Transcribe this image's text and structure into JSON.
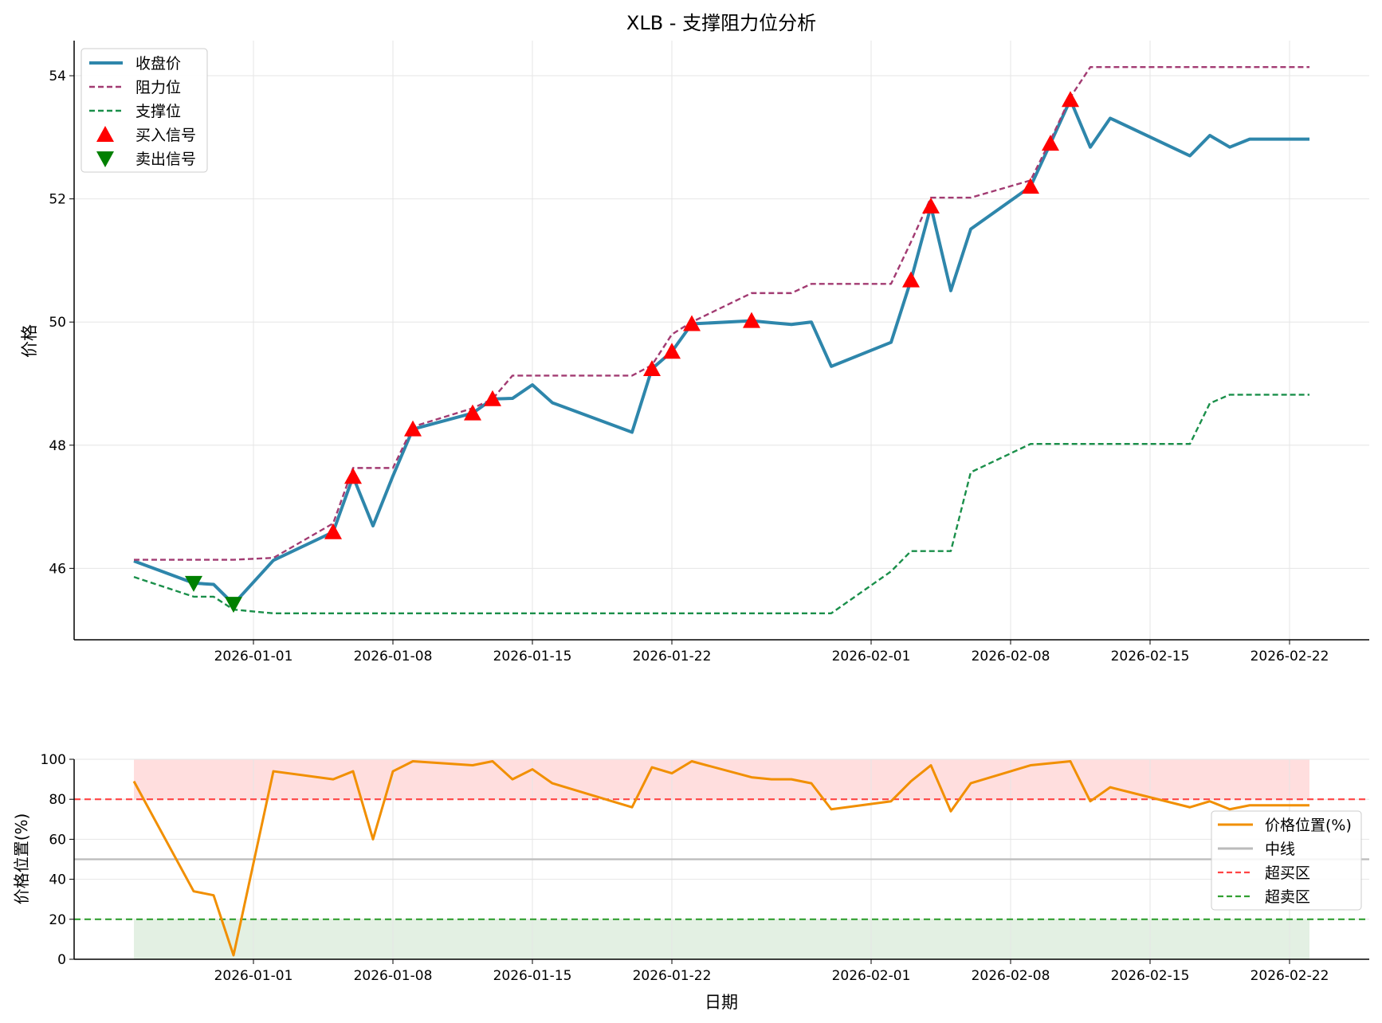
{
  "chart_data": [
    {
      "type": "line",
      "title": "XLB - 支撑阻力位分析",
      "xlabel": "",
      "ylabel": "价格",
      "ylim": [
        44.84,
        54.57
      ],
      "xlim": [
        "2025-12-23",
        "2026-02-26"
      ],
      "yticks": [
        46,
        48,
        50,
        52,
        54
      ],
      "xticks": [
        "2026-01-01",
        "2026-01-08",
        "2026-01-15",
        "2026-01-22",
        "2026-02-01",
        "2026-02-08",
        "2026-02-15",
        "2026-02-22"
      ],
      "grid": true,
      "legend_position": "top-left",
      "x": [
        "2025-12-26",
        "2025-12-29",
        "2025-12-30",
        "2025-12-31",
        "2026-01-02",
        "2026-01-05",
        "2026-01-06",
        "2026-01-07",
        "2026-01-08",
        "2026-01-09",
        "2026-01-12",
        "2026-01-13",
        "2026-01-14",
        "2026-01-15",
        "2026-01-16",
        "2026-01-20",
        "2026-01-21",
        "2026-01-22",
        "2026-01-23",
        "2026-01-26",
        "2026-01-27",
        "2026-01-28",
        "2026-01-29",
        "2026-01-30",
        "2026-02-02",
        "2026-02-03",
        "2026-02-04",
        "2026-02-05",
        "2026-02-06",
        "2026-02-09",
        "2026-02-10",
        "2026-02-11",
        "2026-02-12",
        "2026-02-13",
        "2026-02-17",
        "2026-02-18",
        "2026-02-19",
        "2026-02-20",
        "2026-02-23"
      ],
      "series": [
        {
          "name": "收盘价",
          "color": "#2e86ab",
          "style": "solid",
          "values": [
            46.12,
            45.76,
            45.74,
            45.42,
            46.13,
            46.59,
            47.49,
            46.69,
            47.5,
            48.26,
            48.52,
            48.75,
            48.76,
            48.98,
            48.69,
            48.21,
            49.24,
            49.52,
            49.97,
            50.02,
            49.99,
            49.96,
            50.0,
            49.28,
            49.67,
            50.68,
            51.88,
            50.51,
            51.51,
            52.2,
            52.9,
            53.61,
            52.84,
            53.31,
            52.7,
            53.03,
            52.84,
            52.97,
            52.97
          ]
        },
        {
          "name": "阻力位",
          "color": "#a23b72",
          "style": "dashed",
          "values": [
            46.14,
            46.14,
            46.14,
            46.14,
            46.17,
            46.73,
            47.63,
            47.63,
            47.63,
            48.3,
            48.6,
            48.75,
            49.13,
            49.13,
            49.13,
            49.13,
            49.3,
            49.8,
            50.0,
            50.47,
            50.47,
            50.47,
            50.62,
            50.62,
            50.62,
            51.3,
            52.02,
            52.02,
            52.02,
            52.3,
            52.95,
            53.65,
            54.14,
            54.14,
            54.14,
            54.14,
            54.14,
            54.14,
            54.14
          ]
        },
        {
          "name": "支撑位",
          "color": "#1a8f4a",
          "style": "dashed",
          "values": [
            45.86,
            45.54,
            45.54,
            45.33,
            45.27,
            45.27,
            45.27,
            45.27,
            45.27,
            45.27,
            45.27,
            45.27,
            45.27,
            45.27,
            45.27,
            45.27,
            45.27,
            45.27,
            45.27,
            45.27,
            45.27,
            45.27,
            45.27,
            45.27,
            45.95,
            46.28,
            46.28,
            46.28,
            47.56,
            48.02,
            48.02,
            48.02,
            48.02,
            48.02,
            48.02,
            48.68,
            48.82,
            48.82,
            48.82
          ]
        }
      ],
      "markers": [
        {
          "name": "买入信号",
          "color": "#ff0000",
          "shape": "triangle-up",
          "dates": [
            "2026-01-05",
            "2026-01-06",
            "2026-01-09",
            "2026-01-12",
            "2026-01-13",
            "2026-01-21",
            "2026-01-22",
            "2026-01-23",
            "2026-01-26",
            "2026-02-03",
            "2026-02-04",
            "2026-02-09",
            "2026-02-10",
            "2026-02-11"
          ]
        },
        {
          "name": "卖出信号",
          "color": "#008000",
          "shape": "triangle-down",
          "dates": [
            "2025-12-29",
            "2025-12-31"
          ]
        }
      ]
    },
    {
      "type": "line",
      "title": "",
      "xlabel": "日期",
      "ylabel": "价格位置(%)",
      "ylim": [
        0,
        100
      ],
      "xlim": [
        "2025-12-23",
        "2026-02-26"
      ],
      "yticks": [
        0,
        20,
        40,
        60,
        80,
        100
      ],
      "xticks": [
        "2026-01-01",
        "2026-01-08",
        "2026-01-15",
        "2026-01-22",
        "2026-02-01",
        "2026-02-08",
        "2026-02-15",
        "2026-02-22"
      ],
      "grid": true,
      "legend_position": "right",
      "series": [
        {
          "name": "价格位置(%)",
          "color": "#f18f01",
          "style": "solid",
          "values": [
            89,
            34,
            32,
            2,
            94,
            90,
            94,
            60,
            94,
            99,
            97,
            99,
            90,
            95,
            88,
            76,
            96,
            93,
            99,
            91,
            90,
            90,
            88,
            75,
            79,
            89,
            97,
            74,
            88,
            97,
            98,
            99,
            79,
            86,
            76,
            79,
            75,
            77,
            77
          ]
        }
      ],
      "hlines": [
        {
          "name": "中线",
          "value": 50,
          "color": "#bbbbbb",
          "style": "solid"
        },
        {
          "name": "超买区",
          "value": 80,
          "color": "#ff4444",
          "style": "dashed"
        },
        {
          "name": "超卖区",
          "value": 20,
          "color": "#33a033",
          "style": "dashed"
        }
      ],
      "bands": [
        {
          "from": 80,
          "to": 100,
          "color": "#ffdede"
        },
        {
          "from": 0,
          "to": 20,
          "color": "#e3f0e3"
        }
      ]
    }
  ]
}
